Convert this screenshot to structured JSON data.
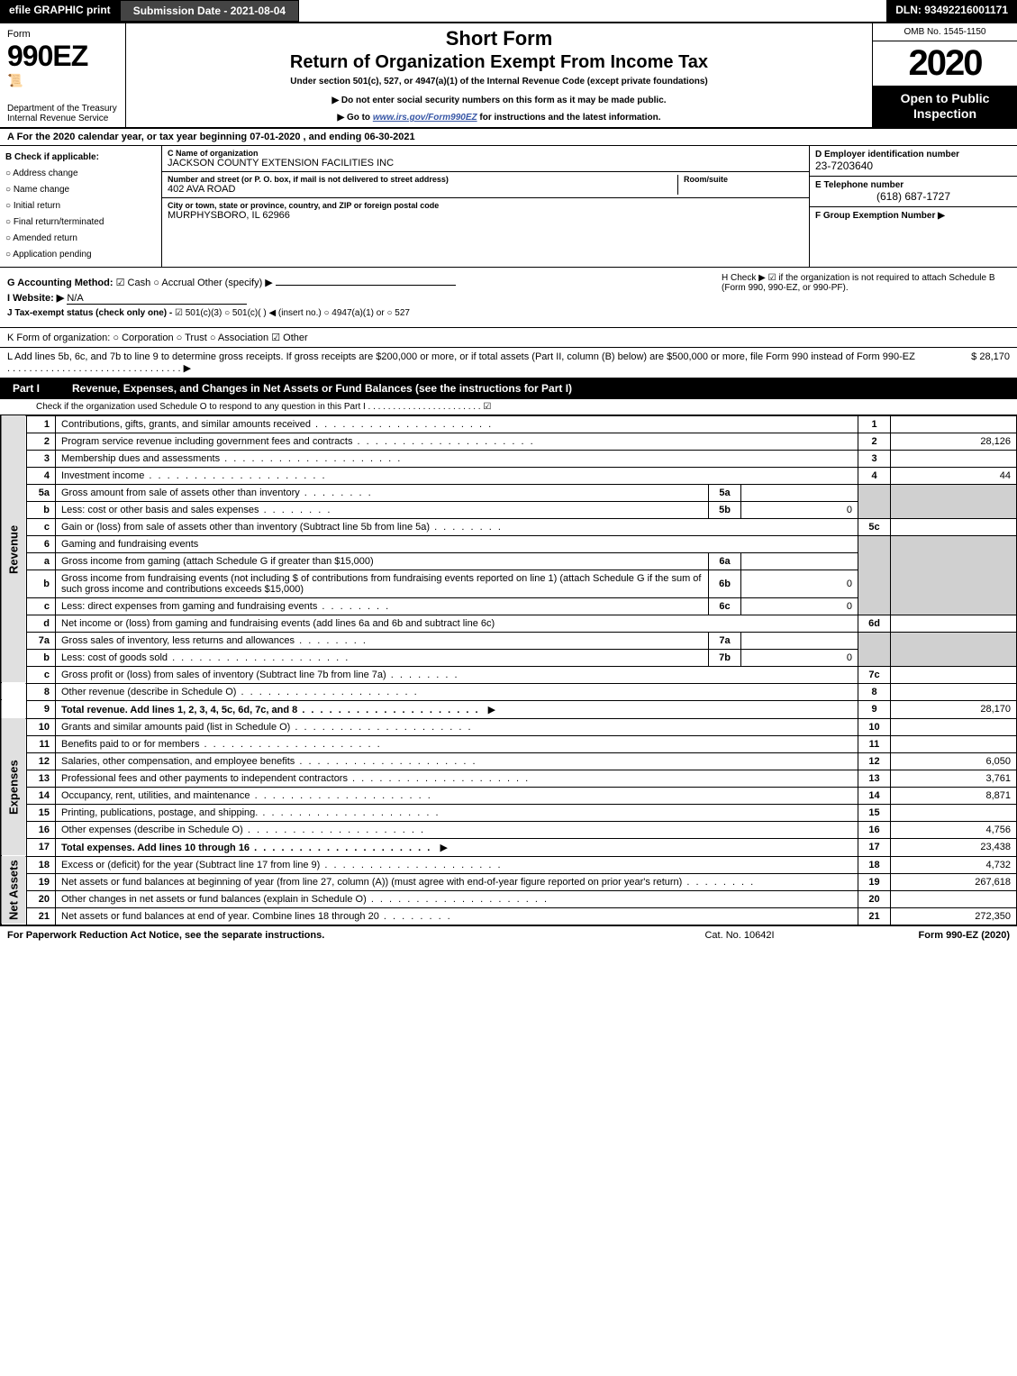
{
  "topbar": {
    "efile": "efile GRAPHIC print",
    "submission": "Submission Date - 2021-08-04",
    "dln": "DLN: 93492216001171"
  },
  "header": {
    "form_word": "Form",
    "form_num": "990EZ",
    "dept": "Department of the Treasury",
    "irs": "Internal Revenue Service",
    "short_form": "Short Form",
    "return_title": "Return of Organization Exempt From Income Tax",
    "under": "Under section 501(c), 527, or 4947(a)(1) of the Internal Revenue Code (except private foundations)",
    "donot": "▶ Do not enter social security numbers on this form as it may be made public.",
    "goto_pre": "▶ Go to ",
    "goto_link": "www.irs.gov/Form990EZ",
    "goto_post": " for instructions and the latest information.",
    "omb": "OMB No. 1545-1150",
    "year": "2020",
    "open": "Open to Public Inspection"
  },
  "tax_year_line": "A For the 2020 calendar year, or tax year beginning 07-01-2020 , and ending 06-30-2021",
  "checkB": {
    "title": "B Check if applicable:",
    "items": [
      "Address change",
      "Name change",
      "Initial return",
      "Final return/terminated",
      "Amended return",
      "Application pending"
    ]
  },
  "org": {
    "c_lbl": "C Name of organization",
    "name": "JACKSON COUNTY EXTENSION FACILITIES INC",
    "addr_lbl": "Number and street (or P. O. box, if mail is not delivered to street address)",
    "addr": "402 AVA ROAD",
    "room_lbl": "Room/suite",
    "city_lbl": "City or town, state or province, country, and ZIP or foreign postal code",
    "city": "MURPHYSBORO, IL  62966"
  },
  "right": {
    "d_lbl": "D Employer identification number",
    "ein": "23-7203640",
    "e_lbl": "E Telephone number",
    "phone": "(618) 687-1727",
    "f_lbl": "F Group Exemption Number  ▶"
  },
  "g_line": {
    "g": "G Accounting Method:",
    "cash": "Cash",
    "accrual": "Accrual",
    "other": "Other (specify) ▶",
    "i": "I Website: ▶",
    "website": "N/A",
    "j": "J Tax-exempt status (check only one) - ",
    "j_opts": "☑ 501(c)(3)  ○ 501(c)( )  ◀ (insert no.)  ○ 4947(a)(1) or  ○ 527"
  },
  "h_line": {
    "h": "H  Check ▶  ☑  if the organization is not required to attach Schedule B (Form 990, 990-EZ, or 990-PF)."
  },
  "k_line": "K Form of organization:    ○ Corporation   ○ Trust   ○ Association   ☑ Other",
  "l_line": {
    "text": "L Add lines 5b, 6c, and 7b to line 9 to determine gross receipts. If gross receipts are $200,000 or more, or if total assets (Part II, column (B) below) are $500,000 or more, file Form 990 instead of Form 990-EZ . . . . . . . . . . . . . . . . . . . . . . . . . . . . . . . . ▶",
    "amt": "$ 28,170"
  },
  "part1": {
    "label": "Part I",
    "title": "Revenue, Expenses, and Changes in Net Assets or Fund Balances (see the instructions for Part I)",
    "sub": "Check if the organization used Schedule O to respond to any question in this Part I . . . . . . . . . . . . . . . . . . . . . . . ☑"
  },
  "sections": {
    "revenue": "Revenue",
    "expenses": "Expenses",
    "netassets": "Net Assets"
  },
  "rows": {
    "r1": {
      "n": "1",
      "d": "Contributions, gifts, grants, and similar amounts received",
      "ln": "1",
      "amt": ""
    },
    "r2": {
      "n": "2",
      "d": "Program service revenue including government fees and contracts",
      "ln": "2",
      "amt": "28,126"
    },
    "r3": {
      "n": "3",
      "d": "Membership dues and assessments",
      "ln": "3",
      "amt": ""
    },
    "r4": {
      "n": "4",
      "d": "Investment income",
      "ln": "4",
      "amt": "44"
    },
    "r5a": {
      "n": "5a",
      "d": "Gross amount from sale of assets other than inventory",
      "iln": "5a",
      "iamt": ""
    },
    "r5b": {
      "n": "b",
      "d": "Less: cost or other basis and sales expenses",
      "iln": "5b",
      "iamt": "0"
    },
    "r5c": {
      "n": "c",
      "d": "Gain or (loss) from sale of assets other than inventory (Subtract line 5b from line 5a)",
      "ln": "5c",
      "amt": ""
    },
    "r6": {
      "n": "6",
      "d": "Gaming and fundraising events"
    },
    "r6a": {
      "n": "a",
      "d": "Gross income from gaming (attach Schedule G if greater than $15,000)",
      "iln": "6a",
      "iamt": ""
    },
    "r6b": {
      "n": "b",
      "d": "Gross income from fundraising events (not including $               of contributions from fundraising events reported on line 1) (attach Schedule G if the sum of such gross income and contributions exceeds $15,000)",
      "iln": "6b",
      "iamt": "0"
    },
    "r6c": {
      "n": "c",
      "d": "Less: direct expenses from gaming and fundraising events",
      "iln": "6c",
      "iamt": "0"
    },
    "r6d": {
      "n": "d",
      "d": "Net income or (loss) from gaming and fundraising events (add lines 6a and 6b and subtract line 6c)",
      "ln": "6d",
      "amt": ""
    },
    "r7a": {
      "n": "7a",
      "d": "Gross sales of inventory, less returns and allowances",
      "iln": "7a",
      "iamt": ""
    },
    "r7b": {
      "n": "b",
      "d": "Less: cost of goods sold",
      "iln": "7b",
      "iamt": "0"
    },
    "r7c": {
      "n": "c",
      "d": "Gross profit or (loss) from sales of inventory (Subtract line 7b from line 7a)",
      "ln": "7c",
      "amt": ""
    },
    "r8": {
      "n": "8",
      "d": "Other revenue (describe in Schedule O)",
      "ln": "8",
      "amt": ""
    },
    "r9": {
      "n": "9",
      "d": "Total revenue. Add lines 1, 2, 3, 4, 5c, 6d, 7c, and 8",
      "ln": "9",
      "amt": "28,170"
    },
    "r10": {
      "n": "10",
      "d": "Grants and similar amounts paid (list in Schedule O)",
      "ln": "10",
      "amt": ""
    },
    "r11": {
      "n": "11",
      "d": "Benefits paid to or for members",
      "ln": "11",
      "amt": ""
    },
    "r12": {
      "n": "12",
      "d": "Salaries, other compensation, and employee benefits",
      "ln": "12",
      "amt": "6,050"
    },
    "r13": {
      "n": "13",
      "d": "Professional fees and other payments to independent contractors",
      "ln": "13",
      "amt": "3,761"
    },
    "r14": {
      "n": "14",
      "d": "Occupancy, rent, utilities, and maintenance",
      "ln": "14",
      "amt": "8,871"
    },
    "r15": {
      "n": "15",
      "d": "Printing, publications, postage, and shipping.",
      "ln": "15",
      "amt": ""
    },
    "r16": {
      "n": "16",
      "d": "Other expenses (describe in Schedule O)",
      "ln": "16",
      "amt": "4,756"
    },
    "r17": {
      "n": "17",
      "d": "Total expenses. Add lines 10 through 16",
      "ln": "17",
      "amt": "23,438"
    },
    "r18": {
      "n": "18",
      "d": "Excess or (deficit) for the year (Subtract line 17 from line 9)",
      "ln": "18",
      "amt": "4,732"
    },
    "r19": {
      "n": "19",
      "d": "Net assets or fund balances at beginning of year (from line 27, column (A)) (must agree with end-of-year figure reported on prior year's return)",
      "ln": "19",
      "amt": "267,618"
    },
    "r20": {
      "n": "20",
      "d": "Other changes in net assets or fund balances (explain in Schedule O)",
      "ln": "20",
      "amt": ""
    },
    "r21": {
      "n": "21",
      "d": "Net assets or fund balances at end of year. Combine lines 18 through 20",
      "ln": "21",
      "amt": "272,350"
    }
  },
  "footer": {
    "left": "For Paperwork Reduction Act Notice, see the separate instructions.",
    "mid": "Cat. No. 10642I",
    "right": "Form 990-EZ (2020)"
  },
  "colors": {
    "black": "#000000",
    "shade": "#d0d0d0",
    "siderow": "#e0e0e0",
    "link": "#3857a6"
  }
}
